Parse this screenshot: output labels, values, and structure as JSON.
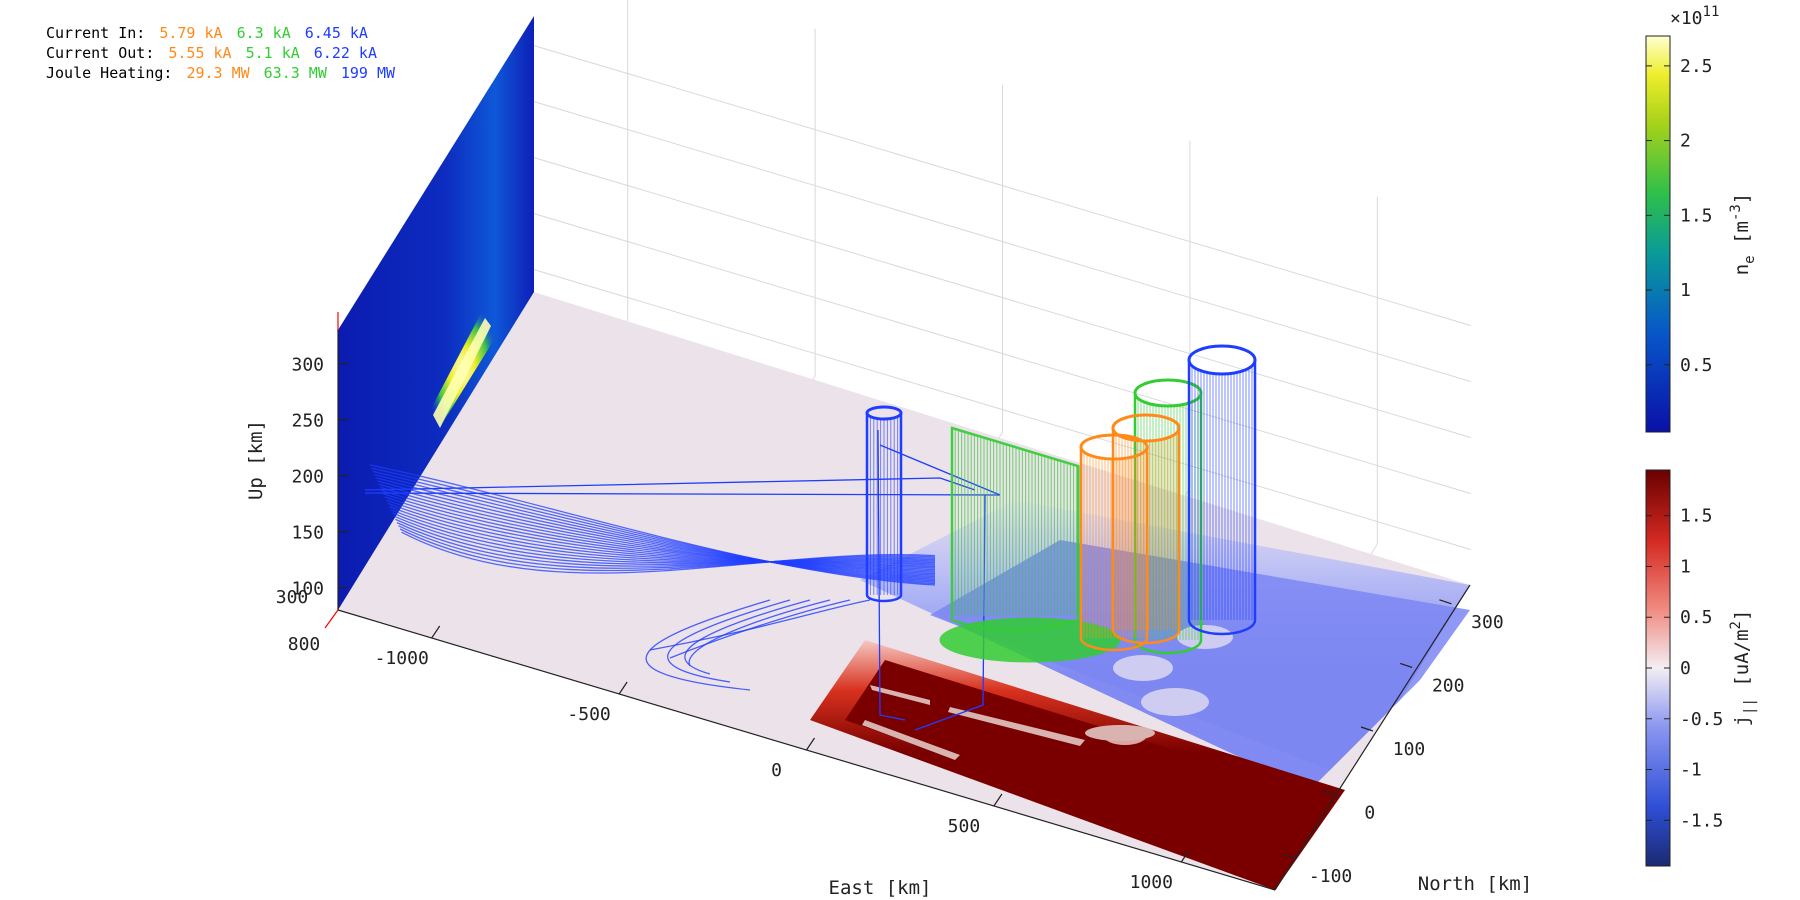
{
  "stats": {
    "current_in": {
      "label": "Current In:",
      "values": [
        "5.79 kA",
        "6.3 kA",
        "6.45 kA"
      ]
    },
    "current_out": {
      "label": "Current Out:",
      "values": [
        "5.55 kA",
        "5.1 kA",
        "6.22 kA"
      ]
    },
    "joule_heating": {
      "label": "Joule Heating:",
      "values": [
        "29.3 MW",
        "63.3 MW",
        "199 MW"
      ]
    },
    "colors": [
      "#ff8a1a",
      "#33cc33",
      "#1f3dff"
    ]
  },
  "chart_data": {
    "type": "3d-field-line-plot",
    "axes": {
      "east": {
        "label": "East [km]",
        "ticks": [
          "-1000",
          "-500",
          "0",
          "500",
          "1000"
        ],
        "range": [
          -1250,
          1250
        ]
      },
      "north": {
        "label": "North [km]",
        "ticks": [
          "-100",
          "0",
          "100",
          "200",
          "300"
        ],
        "range": [
          -150,
          350
        ]
      },
      "up": {
        "label": "Up [km]",
        "ticks": [
          "100",
          "150",
          "200",
          "250",
          "300"
        ],
        "range": [
          80,
          330
        ]
      },
      "markers": [
        {
          "text": "300",
          "color": "#1f3dff"
        },
        {
          "text": "800",
          "color": "#ff0000"
        }
      ]
    },
    "series": [
      {
        "color": "#ff8a1a",
        "current_in_kA": 5.79,
        "current_out_kA": 5.55,
        "joule_heating_MW": 29.3
      },
      {
        "color": "#33cc33",
        "current_in_kA": 6.3,
        "current_out_kA": 5.1,
        "joule_heating_MW": 63.3
      },
      {
        "color": "#1f3dff",
        "current_in_kA": 6.45,
        "current_out_kA": 6.22,
        "joule_heating_MW": 199
      }
    ],
    "colorbars": [
      {
        "label": "n_e [m^-3]",
        "exponent": "×10",
        "exponent_power": "11",
        "ticks": [
          "0.5",
          "1",
          "1.5",
          "2",
          "2.5"
        ],
        "range": [
          0.05,
          2.7
        ]
      },
      {
        "label": "j_|| [uA/m^2]",
        "ticks": [
          "-1.5",
          "-1",
          "-0.5",
          "0",
          "0.5",
          "1",
          "1.5"
        ],
        "range": [
          -1.95,
          1.95
        ]
      }
    ]
  }
}
